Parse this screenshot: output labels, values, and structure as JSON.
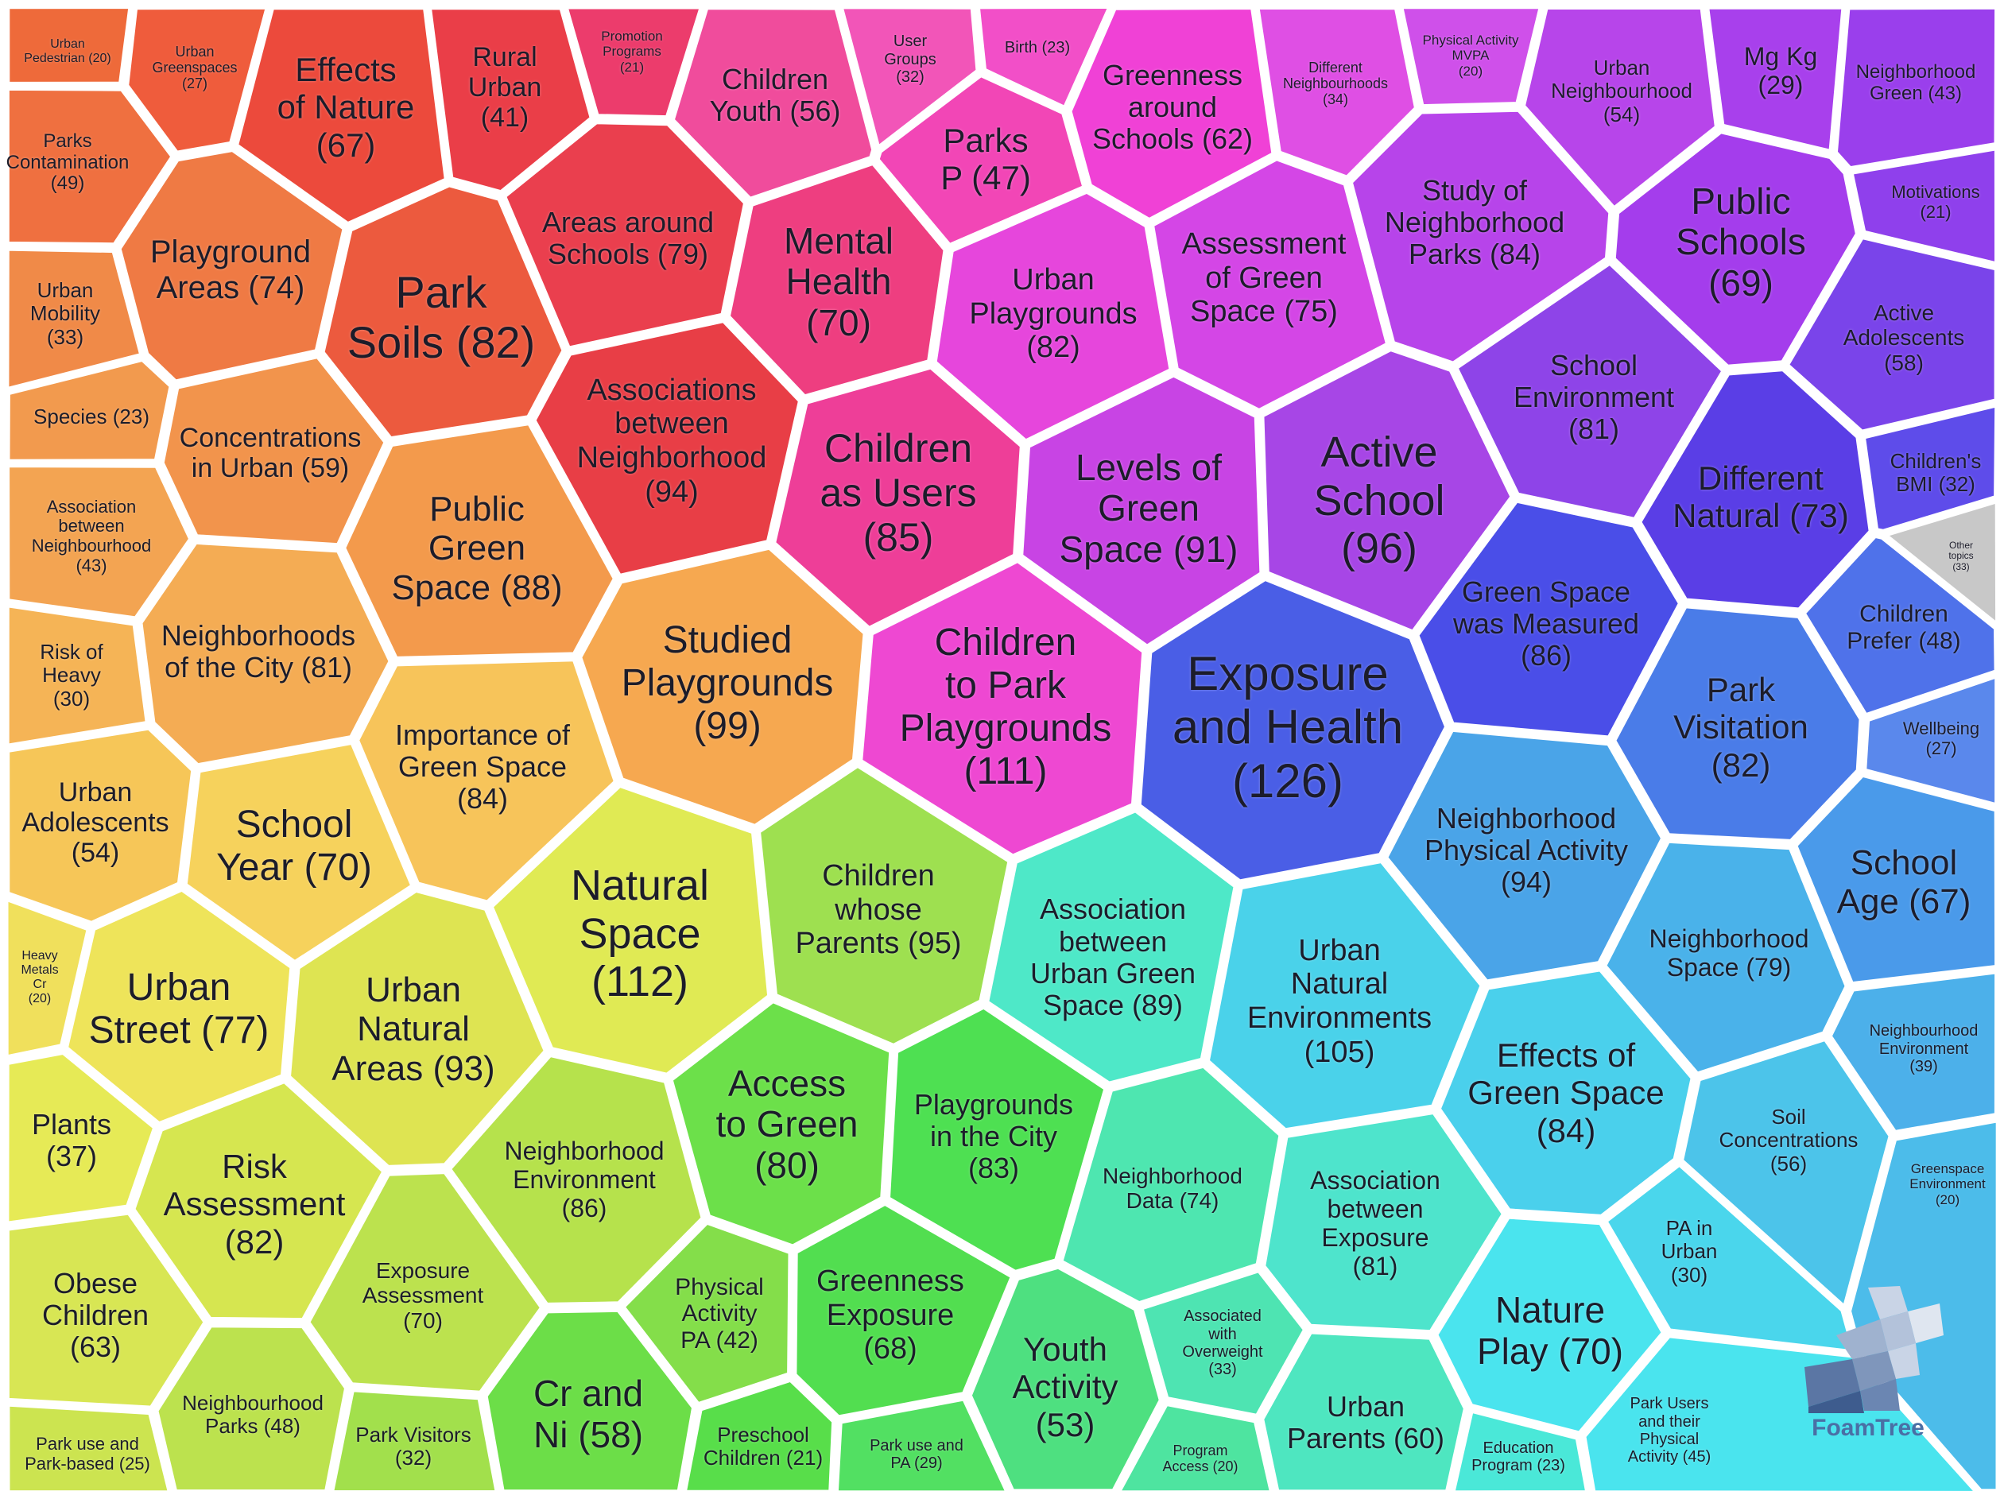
{
  "cells": [
    {
      "label": "Urban Pedestrian (20)",
      "color": "#ee6a3a"
    },
    {
      "label": "Urban Greenspaces (27)",
      "color": "#ef5c3c"
    },
    {
      "label": "Effects of Nature (67)",
      "color": "#ec4a3c"
    },
    {
      "label": "Rural Urban (41)",
      "color": "#ea3e48"
    },
    {
      "label": "Promotion Programs (21)",
      "color": "#ec3c6c"
    },
    {
      "label": "Children Youth (56)",
      "color": "#f04c9c"
    },
    {
      "label": "User Groups (32)",
      "color": "#f255b8"
    },
    {
      "label": "Birth (23)",
      "color": "#f24fc8"
    },
    {
      "label": "Greenness around Schools (62)",
      "color": "#f041d6"
    },
    {
      "label": "Different Neighbourhoods (34)",
      "color": "#df4fe4"
    },
    {
      "label": "Physical Activity MVPA (20)",
      "color": "#cf50ea"
    },
    {
      "label": "Urban Neighbourhood (54)",
      "color": "#b745ea"
    },
    {
      "label": "Mg Kg (29)",
      "color": "#a840ec"
    },
    {
      "label": "Neighborhood Green (43)",
      "color": "#9a3fec"
    },
    {
      "label": "Parks Contamination (49)",
      "color": "#ef7040"
    },
    {
      "label": "Playground Areas (74)",
      "color": "#ef7a44"
    },
    {
      "label": "Park Soils (82)",
      "color": "#ec5a3e"
    },
    {
      "label": "Areas around Schools (79)",
      "color": "#ea3f4e"
    },
    {
      "label": "Mental Health (70)",
      "color": "#ee3e80"
    },
    {
      "label": "Parks P (47)",
      "color": "#f246b6"
    },
    {
      "label": "Urban Playgrounds (82)",
      "color": "#e646dc"
    },
    {
      "label": "Assessment of Green Space (75)",
      "color": "#d446e6"
    },
    {
      "label": "Study of Neighborhood Parks (84)",
      "color": "#b744ea"
    },
    {
      "label": "Public Schools (69)",
      "color": "#a43dec"
    },
    {
      "label": "Motivations (21)",
      "color": "#8f40ec"
    },
    {
      "label": "Urban Mobility (33)",
      "color": "#f08a48"
    },
    {
      "label": "Concentrations in Urban (59)",
      "color": "#f2944c"
    },
    {
      "label": "Associations between Neighborhood (94)",
      "color": "#e83e46"
    },
    {
      "label": "Children as Users (85)",
      "color": "#ee3e98"
    },
    {
      "label": "Levels of Green Space (91)",
      "color": "#c844e4"
    },
    {
      "label": "Active School (96)",
      "color": "#a746e6"
    },
    {
      "label": "School Environment (81)",
      "color": "#8e44e8"
    },
    {
      "label": "Active Adolescents (58)",
      "color": "#7a44ea"
    },
    {
      "label": "Species (23)",
      "color": "#f29a4e"
    },
    {
      "label": "Association between Neighbourhood (43)",
      "color": "#f3a452"
    },
    {
      "label": "Public Green Space (88)",
      "color": "#f39a4c"
    },
    {
      "label": "Different Natural (73)",
      "color": "#5a3ee6"
    },
    {
      "label": "Children's BMI (32)",
      "color": "#5e4cea"
    },
    {
      "label": "Other topics (33)",
      "color": "#c8c8c8"
    },
    {
      "label": "Risk of Heavy (30)",
      "color": "#f5b456"
    },
    {
      "label": "Neighborhoods of the City (81)",
      "color": "#f4ac54"
    },
    {
      "label": "Studied Playgrounds (99)",
      "color": "#f6a850"
    },
    {
      "label": "Children to Park Playgrounds (111)",
      "color": "#ee48d2"
    },
    {
      "label": "Exposure and Health (126)",
      "color": "#4a5ee6"
    },
    {
      "label": "Green Space was Measured (86)",
      "color": "#4a4ee8"
    },
    {
      "label": "Children Prefer (48)",
      "color": "#4f72ea"
    },
    {
      "label": "Urban Adolescents (54)",
      "color": "#f6c658"
    },
    {
      "label": "School Year (70)",
      "color": "#f6d25c"
    },
    {
      "label": "Importance of Green Space (84)",
      "color": "#f7c45a"
    },
    {
      "label": "Park Visitation (82)",
      "color": "#4a7ce8"
    },
    {
      "label": "Wellbeing (27)",
      "color": "#5a88ec"
    },
    {
      "label": "Heavy Metals Cr (20)",
      "color": "#f0e05c"
    },
    {
      "label": "Urban Street (77)",
      "color": "#eee45a"
    },
    {
      "label": "Urban Natural Areas (93)",
      "color": "#dee452"
    },
    {
      "label": "Natural Space (112)",
      "color": "#e0ea54"
    },
    {
      "label": "Children whose Parents (95)",
      "color": "#9ee050"
    },
    {
      "label": "Association between Urban Green Space (89)",
      "color": "#4ee8c8"
    },
    {
      "label": "Neighborhood Physical Activity (94)",
      "color": "#4aa4e8"
    },
    {
      "label": "School Age (67)",
      "color": "#4a9aea"
    },
    {
      "label": "Neighborhood Space (79)",
      "color": "#4ab2ea"
    },
    {
      "label": "Urban Natural Environments (105)",
      "color": "#4ad2ea"
    },
    {
      "label": "Neighbourhood Environment (39)",
      "color": "#4cb0ea"
    },
    {
      "label": "Plants (37)",
      "color": "#e6ea56"
    },
    {
      "label": "Risk Assessment (82)",
      "color": "#d6e650"
    },
    {
      "label": "Neighborhood Environment (86)",
      "color": "#b6e24c"
    },
    {
      "label": "Access to Green (80)",
      "color": "#6ce04a"
    },
    {
      "label": "Playgrounds in the City (83)",
      "color": "#4ee052"
    },
    {
      "label": "Neighborhood Data (74)",
      "color": "#4ee6b0"
    },
    {
      "label": "Effects of Green Space (84)",
      "color": "#4ad0ec"
    },
    {
      "label": "Soil Concentrations (56)",
      "color": "#4cc4ea"
    },
    {
      "label": "Greenspace Environment (20)",
      "color": "#4cbcea"
    },
    {
      "label": "Obese Children (63)",
      "color": "#d8e654"
    },
    {
      "label": "Exposure Assessment (70)",
      "color": "#bce24e"
    },
    {
      "label": "Physical Activity PA (42)",
      "color": "#84de4a"
    },
    {
      "label": "Greenness Exposure (68)",
      "color": "#52de50"
    },
    {
      "label": "Youth Activity (53)",
      "color": "#4ee080"
    },
    {
      "label": "Associated with Overweight (33)",
      "color": "#4ee4b2"
    },
    {
      "label": "Association between Exposure (81)",
      "color": "#4ee4cc"
    },
    {
      "label": "PA in Urban (30)",
      "color": "#4ad6ec"
    },
    {
      "label": "Nature Play (70)",
      "color": "#4ae4ee"
    },
    {
      "label": "Park use and Park-based (25)",
      "color": "#cce450"
    },
    {
      "label": "Neighbourhood Parks (48)",
      "color": "#bce24e"
    },
    {
      "label": "Park Visitors (32)",
      "color": "#a2e04c"
    },
    {
      "label": "Cr and Ni (58)",
      "color": "#6cde48"
    },
    {
      "label": "Preschool Children (21)",
      "color": "#58de4a"
    },
    {
      "label": "Park use and PA (29)",
      "color": "#52e062"
    },
    {
      "label": "Program Access (20)",
      "color": "#4ee4a0"
    },
    {
      "label": "Urban Parents (60)",
      "color": "#4ee6c0"
    },
    {
      "label": "Education Program (23)",
      "color": "#4ae8d8"
    },
    {
      "label": "Park Users and their Physical Activity (45)",
      "color": "#4ae4ee"
    }
  ],
  "brand": {
    "name": "FoamTree"
  }
}
